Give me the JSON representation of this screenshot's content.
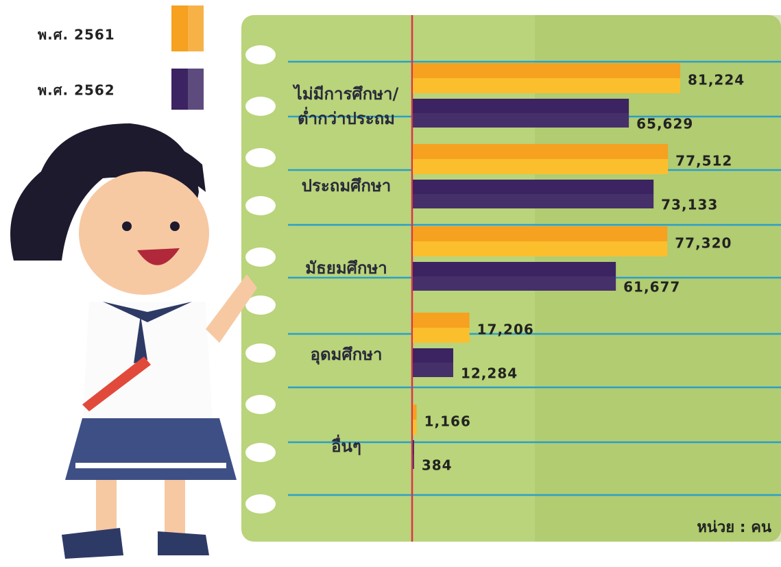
{
  "chart_data": {
    "type": "bar",
    "orientation": "horizontal",
    "legend": "top-left",
    "categories": [
      "ไม่มีการศึกษา/ต่ำกว่าประถม",
      "ประถมศึกษา",
      "มัธยมศึกษา",
      "อุดมศึกษา",
      "อื่นๆ"
    ],
    "series": [
      {
        "name": "พ.ศ. 2561",
        "color": "#f6a11f",
        "values": [
          81224,
          77512,
          77320,
          17206,
          1166
        ],
        "value_labels": [
          "81,224",
          "77,512",
          "77,320",
          "17,206",
          "1,166"
        ]
      },
      {
        "name": "พ.ศ. 2562",
        "color": "#3b2461",
        "values": [
          65629,
          73133,
          61677,
          12284,
          384
        ],
        "value_labels": [
          "65,629",
          "73,133",
          "61,677",
          "12,284",
          "384"
        ]
      }
    ],
    "annotation": "หน่วย : คน"
  }
}
